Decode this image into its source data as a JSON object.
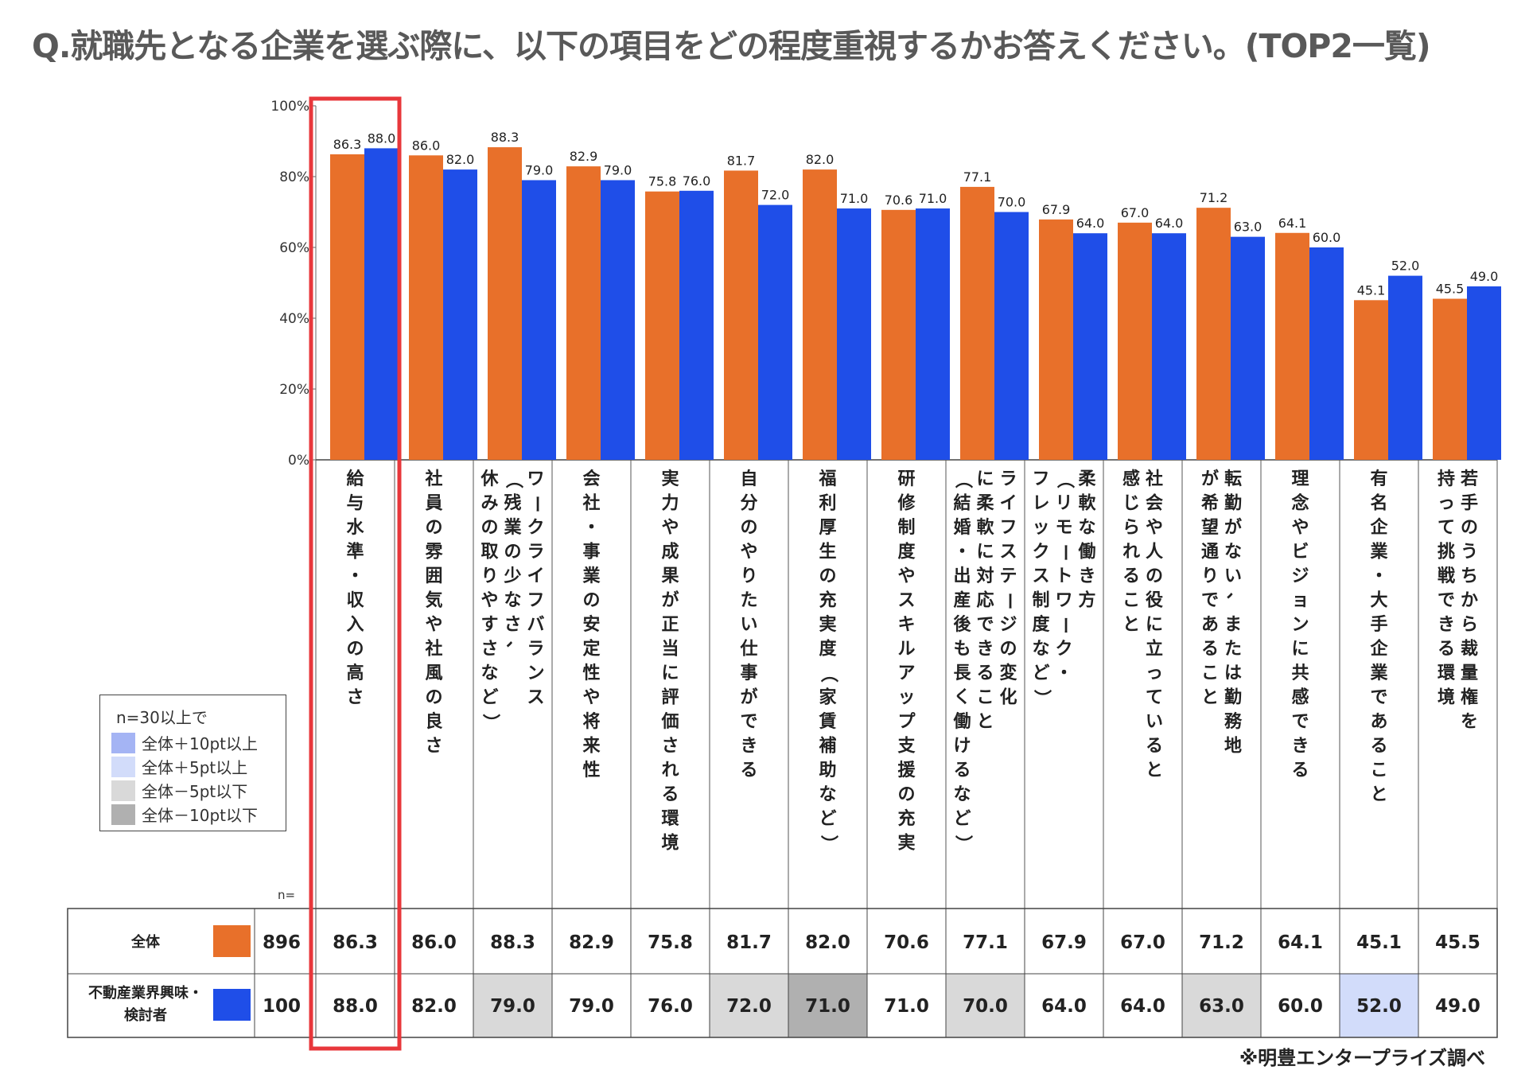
{
  "title": "Q.就職先となる企業を選ぶ際に、以下の項目をどの程度重視するかお答えください。(TOP2一覧)",
  "source": "※明豊エンタープライズ調べ",
  "legend": {
    "title": "n=30以上で",
    "items": [
      {
        "label": "全体＋10pt以上",
        "color": "#a4b4f4"
      },
      {
        "label": "全体＋5pt以上",
        "color": "#d2dcfa"
      },
      {
        "label": "全体－5pt以下",
        "color": "#d9d9d9"
      },
      {
        "label": "全体－10pt以下",
        "color": "#b0b0b0"
      }
    ]
  },
  "table": {
    "n_label": "n=",
    "rows": [
      {
        "label": "全体",
        "n": "896",
        "color": "#e8702a"
      },
      {
        "label": "不動産業界興味・検討者",
        "n": "100",
        "color": "#1f4ee8"
      }
    ]
  },
  "chart_data": {
    "type": "bar",
    "ylim": [
      0,
      100
    ],
    "yticks": [
      "0%",
      "20%",
      "40%",
      "60%",
      "80%",
      "100%"
    ],
    "categories": [
      "給与水準・収入の高さ",
      "社員の雰囲気や社風の良さ",
      "ワークライフバランス（残業の少なさ、休みの取りやすさなど）",
      "会社・事業の安定性や将来性",
      "実力や成果が正当に評価される環境",
      "自分のやりたい仕事ができる",
      "福利厚生の充実度（家賃補助など）",
      "研修制度やスキルアップ支援の充実",
      "ライフステージの変化に柔軟に対応できること（結婚・出産後も長く働けるなど）",
      "柔軟な働き方（リモートワーク・フレックス制度など）",
      "社会や人の役に立っていると感じられること",
      "転勤がない、または勤務地が希望通りであること",
      "理念やビジョンに共感できる",
      "有名企業・大手企業であること",
      "若手のうちから裁量権を持って挑戦できる環境"
    ],
    "category_lines": [
      [
        "給与水準・収入の高さ"
      ],
      [
        "社員の雰囲気や社風の良さ"
      ],
      [
        "ワークライフバランス",
        "（残業の少なさ、",
        "休みの取りやすさなど）"
      ],
      [
        "会社・事業の安定性や将来性"
      ],
      [
        "実力や成果が正当に評価される環境"
      ],
      [
        "自分のやりたい仕事ができる"
      ],
      [
        "福利厚生の充実度（家賃補助など）"
      ],
      [
        "研修制度やスキルアップ支援の充実"
      ],
      [
        "ライフステージの変化",
        "に柔軟に対応できること",
        "（結婚・出産後も長く働けるなど）"
      ],
      [
        "柔軟な働き方",
        "（リモートワーク・",
        "フレックス制度など）"
      ],
      [
        "社会や人の役に立っていると",
        "感じられること"
      ],
      [
        "転勤がない、または勤務地",
        "が希望通りであること"
      ],
      [
        "理念やビジョンに共感できる"
      ],
      [
        "有名企業・大手企業であること"
      ],
      [
        "若手のうちから裁量権を",
        "持って挑戦できる環境"
      ]
    ],
    "series": [
      {
        "name": "全体",
        "color": "#e8702a",
        "values": [
          86.3,
          86.0,
          88.3,
          82.9,
          75.8,
          81.7,
          82.0,
          70.6,
          77.1,
          67.9,
          67.0,
          71.2,
          64.1,
          45.1,
          45.5
        ],
        "labels": [
          "86.3",
          "86.0",
          "88.3",
          "82.9",
          "75.8",
          "81.7",
          "82.0",
          "70.6",
          "77.1",
          "67.9",
          "67.0",
          "71.2",
          "64.1",
          "45.1",
          "45.5"
        ]
      },
      {
        "name": "不動産業界興味・検討者",
        "color": "#1f4ee8",
        "values": [
          88.0,
          82.0,
          79.0,
          79.0,
          76.0,
          72.0,
          71.0,
          71.0,
          70.0,
          64.0,
          64.0,
          63.0,
          60.0,
          52.0,
          49.0
        ],
        "labels": [
          "88.0",
          "82.0",
          "79.0",
          "79.0",
          "76.0",
          "72.0",
          "71.0",
          "71.0",
          "70.0",
          "64.0",
          "64.0",
          "63.0",
          "60.0",
          "52.0",
          "49.0"
        ]
      }
    ],
    "row2_highlight": [
      "none",
      "none",
      "minus5",
      "none",
      "none",
      "minus5",
      "minus10",
      "none",
      "minus5",
      "none",
      "none",
      "minus5",
      "none",
      "plus5",
      "none"
    ],
    "highlight_category_index": 0,
    "highlight_color": "#e8373b"
  }
}
